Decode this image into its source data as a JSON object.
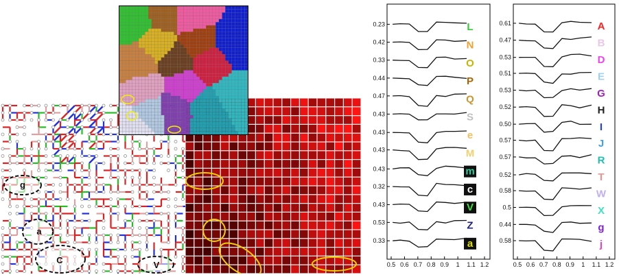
{
  "graph_panel": {
    "regions": [
      {
        "label": "g"
      },
      {
        "label": "a"
      },
      {
        "label": "C"
      },
      {
        "label": "V"
      }
    ]
  },
  "profile_left": {
    "x_ticks": [
      "0.5",
      "0.6",
      "0.7",
      "0.8",
      "0.9",
      "1",
      "1.1",
      "1.2"
    ],
    "rows": [
      {
        "value": "0.23",
        "label": "L",
        "color": "#33cc33",
        "boxed": false
      },
      {
        "value": "0.42",
        "label": "N",
        "color": "#f0a030",
        "boxed": false
      },
      {
        "value": "0.33",
        "label": "O",
        "color": "#c8b400",
        "boxed": false
      },
      {
        "value": "0.44",
        "label": "P",
        "color": "#a86400",
        "boxed": false
      },
      {
        "value": "0.47",
        "label": "Q",
        "color": "#c89632",
        "boxed": false
      },
      {
        "value": "0.43",
        "label": "S",
        "color": "#c0c0c0",
        "boxed": false
      },
      {
        "value": "0.43",
        "label": "e",
        "color": "#f0c060",
        "boxed": false
      },
      {
        "value": "0.43",
        "label": "M",
        "color": "#f0d070",
        "boxed": false
      },
      {
        "value": "0.43",
        "label": "m",
        "color": "#30d0a0",
        "boxed": true
      },
      {
        "value": "0.32",
        "label": "c",
        "color": "#ffffff",
        "boxed": true
      },
      {
        "value": "0.43",
        "label": "V",
        "color": "#40e040",
        "boxed": true
      },
      {
        "value": "0.53",
        "label": "Z",
        "color": "#202080",
        "boxed": false
      },
      {
        "value": "0.33",
        "label": "a",
        "color": "#e0e000",
        "boxed": true
      }
    ]
  },
  "profile_right": {
    "x_ticks": [
      "0.5",
      "0.6",
      "0.7",
      "0.8",
      "0.9",
      "1",
      "1.1",
      "1.2"
    ],
    "rows": [
      {
        "value": "0.61",
        "label": "A",
        "color": "#ff2020"
      },
      {
        "value": "0.47",
        "label": "B",
        "color": "#e8c8e8"
      },
      {
        "value": "0.53",
        "label": "D",
        "color": "#f040f0"
      },
      {
        "value": "0.51",
        "label": "E",
        "color": "#a0d0f0"
      },
      {
        "value": "0.53",
        "label": "G",
        "color": "#a020c0"
      },
      {
        "value": "0.52",
        "label": "H",
        "color": "#202020"
      },
      {
        "value": "0.50",
        "label": "I",
        "color": "#2040ff"
      },
      {
        "value": "0.57",
        "label": "J",
        "color": "#40a0f0"
      },
      {
        "value": "0.57",
        "label": "R",
        "color": "#20c0b0"
      },
      {
        "value": "0.52",
        "label": "T",
        "color": "#f09090"
      },
      {
        "value": "0.58",
        "label": "W",
        "color": "#c0b0f0"
      },
      {
        "value": "0.5",
        "label": "X",
        "color": "#40e0c0"
      },
      {
        "value": "0.44",
        "label": "g",
        "color": "#8020e0"
      },
      {
        "value": "0.58",
        "label": "j",
        "color": "#f040c0"
      }
    ]
  }
}
